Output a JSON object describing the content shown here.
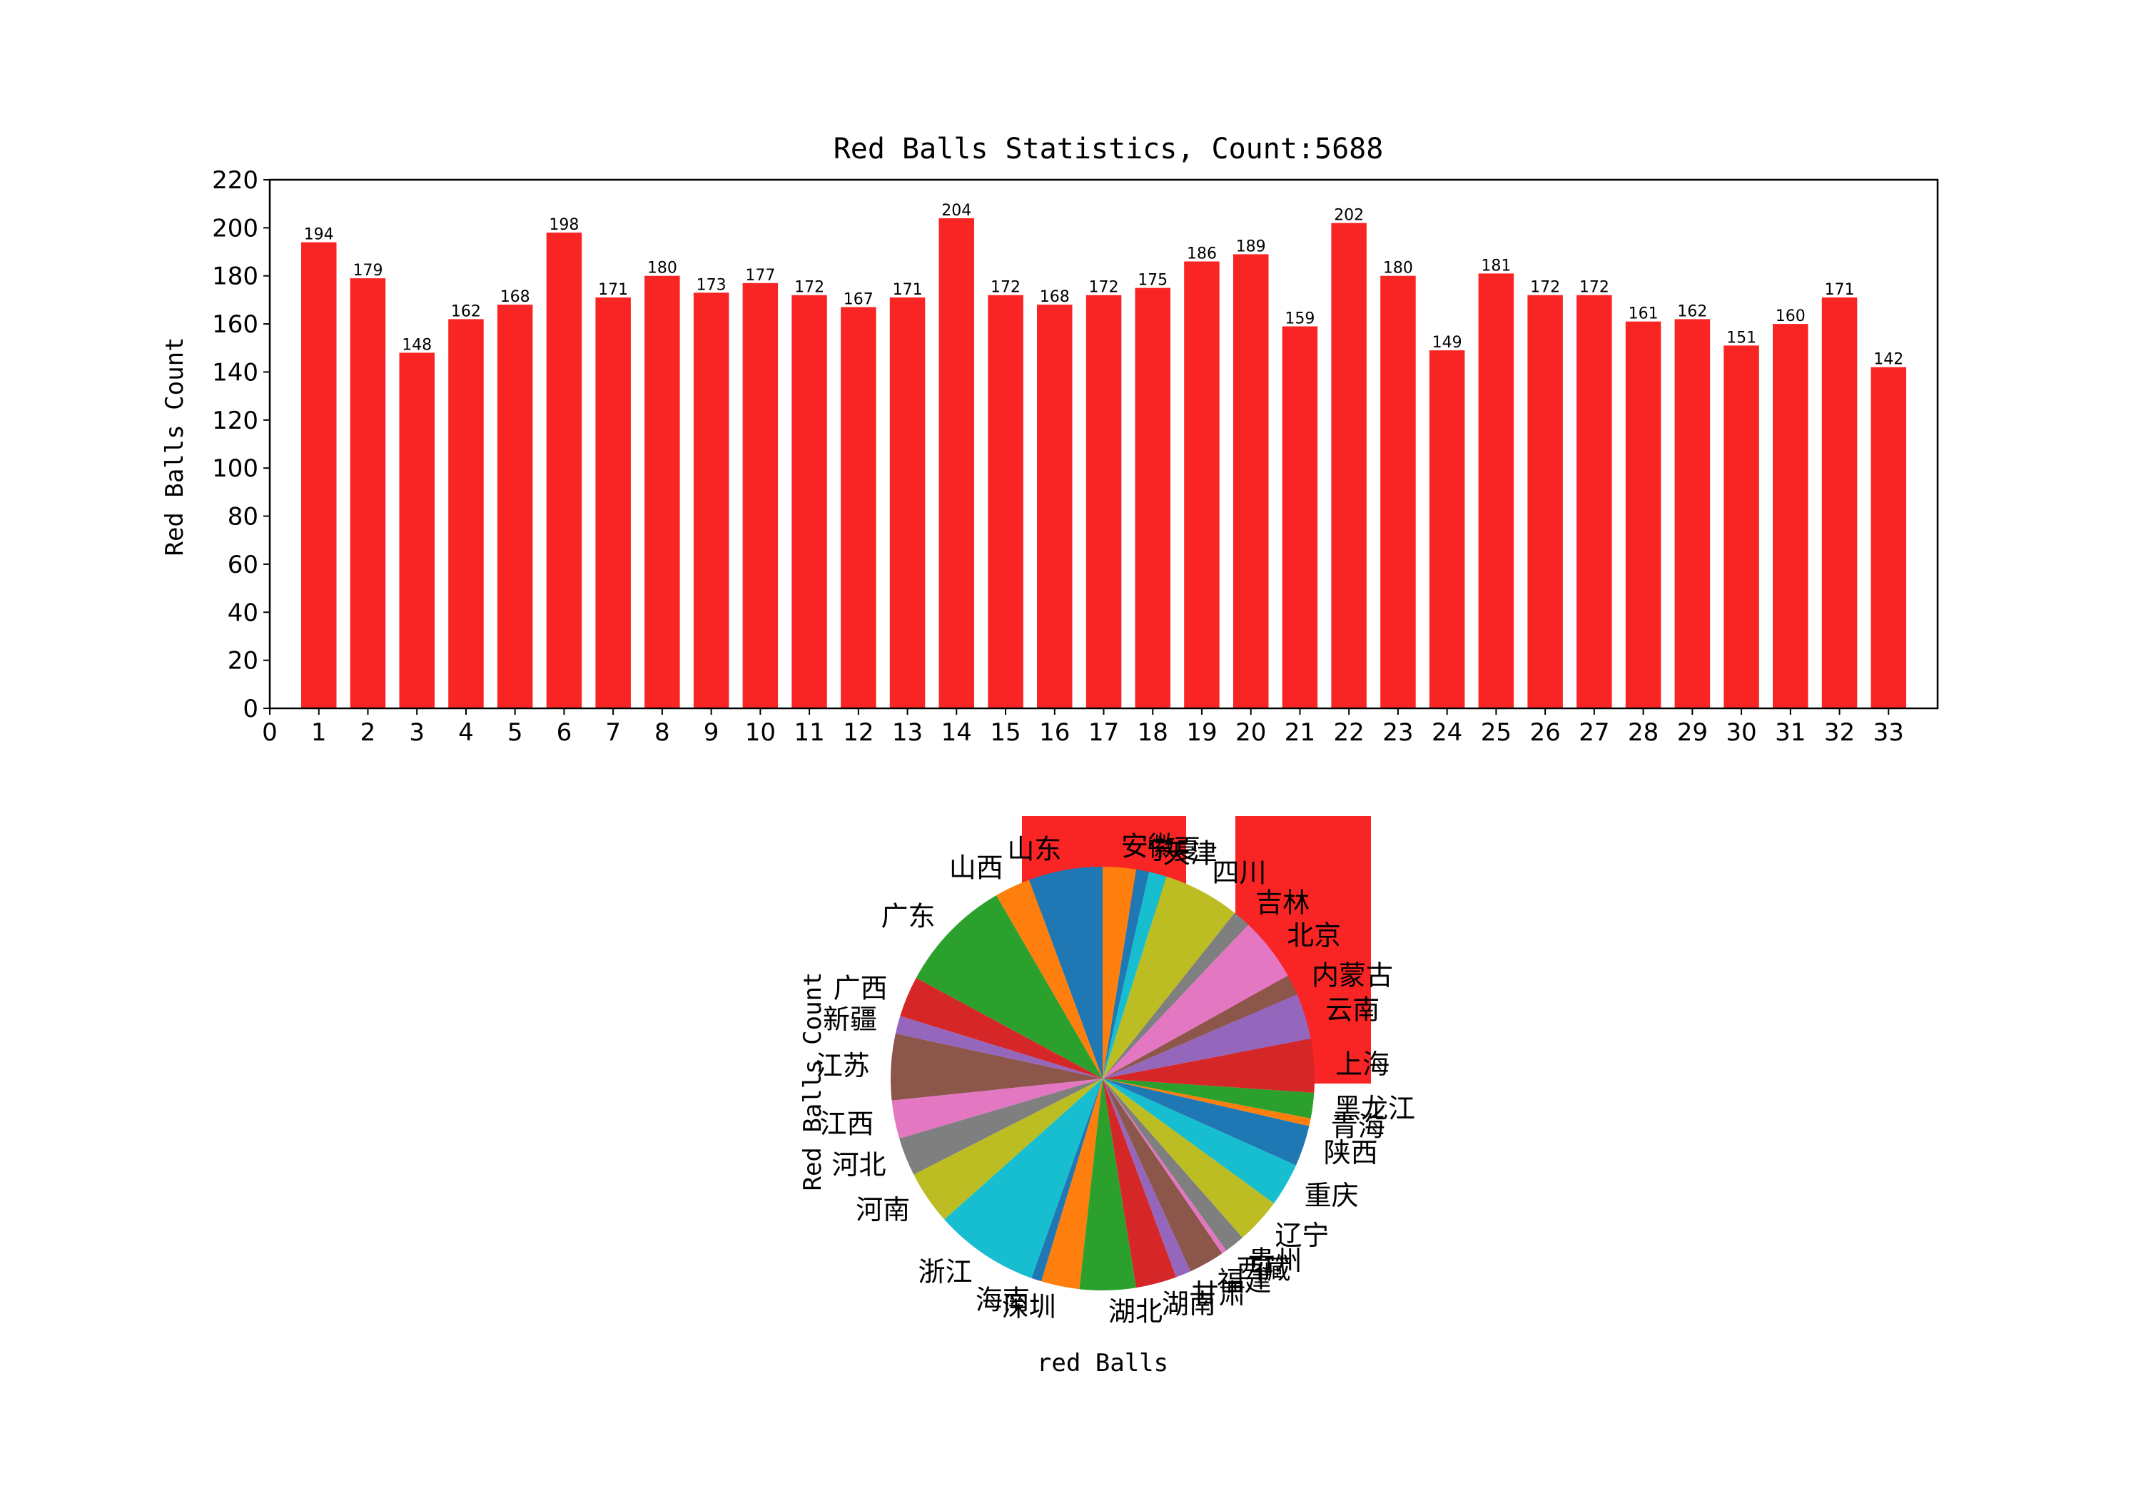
{
  "chart_data": [
    {
      "type": "bar",
      "title": "Red Balls Statistics, Count:5688",
      "xlabel": "",
      "ylabel": "Red Balls Count",
      "xlim": [
        0,
        34
      ],
      "x_ticks": [
        0,
        1,
        2,
        3,
        4,
        5,
        6,
        7,
        8,
        9,
        10,
        11,
        12,
        13,
        14,
        15,
        16,
        17,
        18,
        19,
        20,
        21,
        22,
        23,
        24,
        25,
        26,
        27,
        28,
        29,
        30,
        31,
        32,
        33
      ],
      "ylim": [
        0,
        220
      ],
      "y_ticks": [
        0,
        20,
        40,
        60,
        80,
        100,
        120,
        140,
        160,
        180,
        200,
        220
      ],
      "categories": [
        1,
        2,
        3,
        4,
        5,
        6,
        7,
        8,
        9,
        10,
        11,
        12,
        13,
        14,
        15,
        16,
        17,
        18,
        19,
        20,
        21,
        22,
        23,
        24,
        25,
        26,
        27,
        28,
        29,
        30,
        31,
        32,
        33
      ],
      "values": [
        194,
        179,
        148,
        162,
        168,
        198,
        171,
        180,
        173,
        177,
        172,
        167,
        171,
        204,
        172,
        168,
        172,
        175,
        186,
        189,
        159,
        202,
        180,
        149,
        181,
        172,
        172,
        161,
        162,
        151,
        160,
        171,
        142
      ],
      "bar_color": "#f92424",
      "grid": false
    },
    {
      "type": "pie",
      "xlabel": "red Balls",
      "ylabel": "Red Balls Count",
      "labels": [
        "山东",
        "山西",
        "广东",
        "广西",
        "新疆",
        "江苏",
        "江西",
        "河北",
        "河南",
        "浙江",
        "海南",
        "深圳",
        "湖北",
        "湖南",
        "甘肃",
        "福建",
        "西藏",
        "贵州",
        "辽宁",
        "重庆",
        "陕西",
        "青海",
        "黑龙江",
        "上海",
        "云南",
        "内蒙古",
        "北京",
        "吉林",
        "四川",
        "天津",
        "宁夏",
        "安徽"
      ],
      "values": [
        2.9,
        1.4,
        4.5,
        1.6,
        0.7,
        2.6,
        1.5,
        1.5,
        2.1,
        4.1,
        0.4,
        1.5,
        2.2,
        1.6,
        0.6,
        1.4,
        0.2,
        0.8,
        1.8,
        1.7,
        1.6,
        0.3,
        1.0,
        2.1,
        1.8,
        0.8,
        2.5,
        0.7,
        3.0,
        0.7,
        0.5,
        1.3
      ],
      "colors": [
        "#1f77b4",
        "#ff7f0e",
        "#2ca02c",
        "#d62728",
        "#9467bd",
        "#8c564b",
        "#e377c2",
        "#7f7f7f",
        "#bcbd22",
        "#17becf"
      ],
      "red_bars_behind_pie": "#f92424"
    }
  ]
}
